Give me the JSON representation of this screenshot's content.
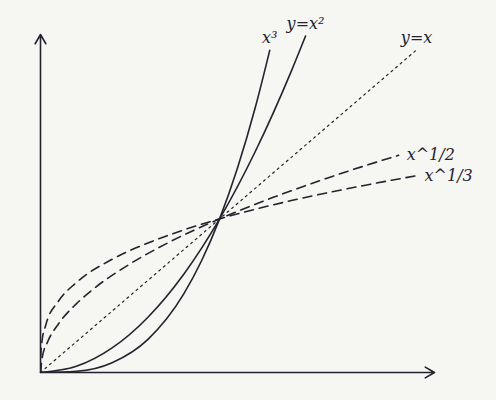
{
  "chart_data": {
    "type": "line",
    "xlim": [
      0,
      2.2
    ],
    "ylim": [
      0,
      2.2
    ],
    "tick_labels": false,
    "series": [
      {
        "name": "x³",
        "color": "#23232f",
        "line_style": "solid",
        "x": [
          0,
          0.2,
          0.4,
          0.6,
          0.8,
          0.9,
          1,
          1.1,
          1.2,
          1.28
        ],
        "values": [
          0,
          0.008,
          0.064,
          0.216,
          0.512,
          0.729,
          1,
          1.331,
          1.728,
          2.097
        ]
      },
      {
        "name": "y=x²",
        "color": "#23232f",
        "line_style": "solid",
        "x": [
          0,
          0.2,
          0.4,
          0.6,
          0.8,
          1,
          1.2,
          1.4,
          1.48
        ],
        "values": [
          0,
          0.04,
          0.16,
          0.36,
          0.64,
          1,
          1.44,
          1.96,
          2.19
        ]
      },
      {
        "name": "y=x",
        "color": "#23232f",
        "line_style": "dotted",
        "x": [
          0,
          2.1
        ],
        "values": [
          0,
          2.1
        ]
      },
      {
        "name": "x^1/2",
        "color": "#23232f",
        "line_style": "dashed",
        "x": [
          0,
          0.01,
          0.04,
          0.1,
          0.2,
          0.3,
          0.5,
          0.7,
          1,
          1.3,
          1.6,
          2.0
        ],
        "values": [
          0,
          0.1,
          0.2,
          0.316,
          0.447,
          0.548,
          0.707,
          0.837,
          1,
          1.14,
          1.265,
          1.414
        ]
      },
      {
        "name": "x^1/3",
        "color": "#23232f",
        "line_style": "dashed",
        "x": [
          0,
          0.001,
          0.008,
          0.03,
          0.1,
          0.2,
          0.4,
          0.6,
          0.8,
          1,
          1.4,
          1.8,
          2.1
        ],
        "values": [
          0,
          0.1,
          0.2,
          0.311,
          0.464,
          0.585,
          0.737,
          0.843,
          0.928,
          1,
          1.119,
          1.216,
          1.281
        ]
      }
    ]
  }
}
